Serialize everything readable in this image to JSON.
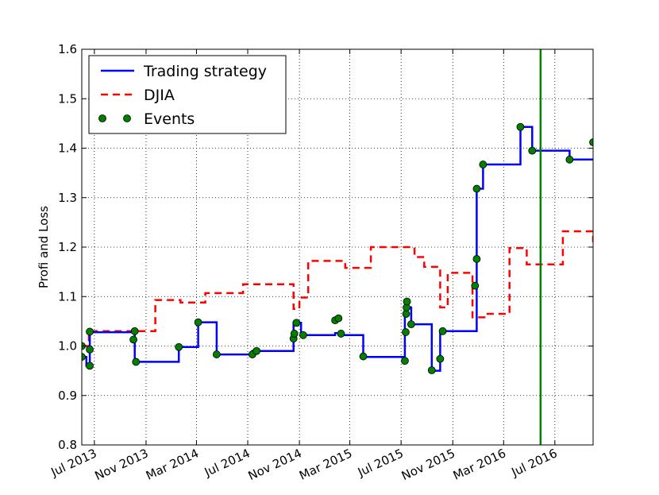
{
  "chart_data": {
    "type": "line",
    "title": "",
    "xlabel": "",
    "ylabel": "Profi and Loss",
    "xlim": [
      "2013-06-01",
      "2016-09-30"
    ],
    "ylim": [
      0.8,
      1.6
    ],
    "x_tick_labels": [
      {
        "date": "2013-07-01",
        "label": "Jul 2013"
      },
      {
        "date": "2013-11-01",
        "label": "Nov 2013"
      },
      {
        "date": "2014-03-01",
        "label": "Mar 2014"
      },
      {
        "date": "2014-07-01",
        "label": "Jul 2014"
      },
      {
        "date": "2014-11-01",
        "label": "Nov 2014"
      },
      {
        "date": "2015-03-01",
        "label": "Mar 2015"
      },
      {
        "date": "2015-07-01",
        "label": "Jul 2015"
      },
      {
        "date": "2015-11-01",
        "label": "Nov 2015"
      },
      {
        "date": "2016-03-01",
        "label": "Mar 2016"
      },
      {
        "date": "2016-07-01",
        "label": "Jul 2016"
      }
    ],
    "y_ticks": [
      0.8,
      0.9,
      1.0,
      1.1,
      1.2,
      1.3,
      1.4,
      1.5,
      1.6
    ],
    "y_tick_labels": [
      "0.8",
      "0.9",
      "1.0",
      "1.1",
      "1.2",
      "1.3",
      "1.4",
      "1.5",
      "1.6"
    ],
    "grid": true,
    "legend_position": "top-left",
    "vertical_line": {
      "date": "2016-05-28",
      "color": "#008000"
    },
    "series": [
      {
        "name": "Trading strategy",
        "style": "step",
        "color": "#0000ff",
        "dash": "solid",
        "points": [
          [
            "2013-06-01",
            0.978
          ],
          [
            "2013-06-12",
            0.978
          ],
          [
            "2013-06-12",
            0.96
          ],
          [
            "2013-06-20",
            0.96
          ],
          [
            "2013-06-20",
            1.028
          ],
          [
            "2013-10-05",
            1.028
          ],
          [
            "2013-10-05",
            0.968
          ],
          [
            "2014-01-18",
            0.968
          ],
          [
            "2014-01-18",
            0.998
          ],
          [
            "2014-03-05",
            0.998
          ],
          [
            "2014-03-05",
            1.048
          ],
          [
            "2014-04-18",
            1.048
          ],
          [
            "2014-04-18",
            0.983
          ],
          [
            "2014-07-12",
            0.983
          ],
          [
            "2014-07-12",
            0.99
          ],
          [
            "2014-10-18",
            0.99
          ],
          [
            "2014-10-18",
            1.047
          ],
          [
            "2014-11-05",
            1.047
          ],
          [
            "2014-11-05",
            1.022
          ],
          [
            "2015-01-25",
            1.022
          ],
          [
            "2015-01-25",
            1.026
          ],
          [
            "2015-02-08",
            1.026
          ],
          [
            "2015-02-08",
            1.022
          ],
          [
            "2015-04-02",
            1.022
          ],
          [
            "2015-04-02",
            0.978
          ],
          [
            "2015-07-10",
            0.978
          ],
          [
            "2015-07-10",
            1.078
          ],
          [
            "2015-07-25",
            1.078
          ],
          [
            "2015-07-25",
            1.044
          ],
          [
            "2015-09-12",
            1.044
          ],
          [
            "2015-09-12",
            0.95
          ],
          [
            "2015-10-02",
            0.95
          ],
          [
            "2015-10-02",
            1.03
          ],
          [
            "2015-12-28",
            1.03
          ],
          [
            "2015-12-28",
            1.318
          ],
          [
            "2016-01-12",
            1.318
          ],
          [
            "2016-01-12",
            1.367
          ],
          [
            "2016-04-10",
            1.367
          ],
          [
            "2016-04-10",
            1.443
          ],
          [
            "2016-05-08",
            1.443
          ],
          [
            "2016-05-08",
            1.395
          ],
          [
            "2016-08-05",
            1.395
          ],
          [
            "2016-08-05",
            1.377
          ],
          [
            "2016-09-30",
            1.377
          ]
        ]
      },
      {
        "name": "DJIA",
        "style": "step",
        "color": "#ff0000",
        "dash": "dashed",
        "points": [
          [
            "2013-06-01",
            1.0
          ],
          [
            "2013-06-18",
            1.0
          ],
          [
            "2013-06-18",
            1.03
          ],
          [
            "2013-11-23",
            1.03
          ],
          [
            "2013-11-23",
            1.093
          ],
          [
            "2014-01-22",
            1.093
          ],
          [
            "2014-01-22",
            1.088
          ],
          [
            "2014-03-22",
            1.088
          ],
          [
            "2014-03-22",
            1.107
          ],
          [
            "2014-06-20",
            1.107
          ],
          [
            "2014-06-20",
            1.125
          ],
          [
            "2014-10-18",
            1.125
          ],
          [
            "2014-10-18",
            1.075
          ],
          [
            "2014-11-01",
            1.075
          ],
          [
            "2014-11-01",
            1.098
          ],
          [
            "2014-11-22",
            1.098
          ],
          [
            "2014-11-22",
            1.172
          ],
          [
            "2015-02-18",
            1.172
          ],
          [
            "2015-02-18",
            1.158
          ],
          [
            "2015-04-20",
            1.158
          ],
          [
            "2015-04-20",
            1.2
          ],
          [
            "2015-08-02",
            1.2
          ],
          [
            "2015-08-02",
            1.18
          ],
          [
            "2015-08-25",
            1.18
          ],
          [
            "2015-08-25",
            1.16
          ],
          [
            "2015-10-02",
            1.16
          ],
          [
            "2015-10-02",
            1.078
          ],
          [
            "2015-10-20",
            1.078
          ],
          [
            "2015-10-20",
            1.148
          ],
          [
            "2015-12-18",
            1.148
          ],
          [
            "2015-12-18",
            1.058
          ],
          [
            "2016-01-20",
            1.058
          ],
          [
            "2016-01-20",
            1.065
          ],
          [
            "2016-03-15",
            1.065
          ],
          [
            "2016-03-15",
            1.198
          ],
          [
            "2016-04-25",
            1.198
          ],
          [
            "2016-04-25",
            1.165
          ],
          [
            "2016-07-20",
            1.165
          ],
          [
            "2016-07-20",
            1.232
          ],
          [
            "2016-09-30",
            1.232
          ],
          [
            "2016-09-30",
            1.21
          ]
        ]
      },
      {
        "name": "Events",
        "style": "markers",
        "color": "#007f00",
        "points": [
          [
            "2013-06-01",
            1.0
          ],
          [
            "2013-06-01",
            0.978
          ],
          [
            "2013-06-20",
            0.993
          ],
          [
            "2013-06-20",
            1.029
          ],
          [
            "2013-06-20",
            0.96
          ],
          [
            "2013-10-02",
            1.013
          ],
          [
            "2013-10-05",
            1.03
          ],
          [
            "2013-10-08",
            0.968
          ],
          [
            "2014-01-18",
            0.998
          ],
          [
            "2014-03-05",
            1.048
          ],
          [
            "2014-04-18",
            0.983
          ],
          [
            "2014-07-12",
            0.983
          ],
          [
            "2014-07-22",
            0.99
          ],
          [
            "2014-10-18",
            1.015
          ],
          [
            "2014-10-20",
            1.025
          ],
          [
            "2014-10-25",
            1.047
          ],
          [
            "2014-11-10",
            1.022
          ],
          [
            "2015-01-25",
            1.052
          ],
          [
            "2015-02-02",
            1.056
          ],
          [
            "2015-02-08",
            1.025
          ],
          [
            "2015-04-02",
            0.979
          ],
          [
            "2015-07-10",
            0.97
          ],
          [
            "2015-07-12",
            1.028
          ],
          [
            "2015-07-13",
            1.065
          ],
          [
            "2015-07-14",
            1.078
          ],
          [
            "2015-07-15",
            1.09
          ],
          [
            "2015-07-25",
            1.044
          ],
          [
            "2015-09-12",
            0.951
          ],
          [
            "2015-10-02",
            0.974
          ],
          [
            "2015-10-08",
            1.03
          ],
          [
            "2015-12-24",
            1.122
          ],
          [
            "2015-12-28",
            1.176
          ],
          [
            "2015-12-28",
            1.318
          ],
          [
            "2016-01-12",
            1.367
          ],
          [
            "2016-04-10",
            1.443
          ],
          [
            "2016-05-08",
            1.395
          ],
          [
            "2016-08-05",
            1.377
          ],
          [
            "2016-09-30",
            1.412
          ]
        ]
      }
    ]
  }
}
